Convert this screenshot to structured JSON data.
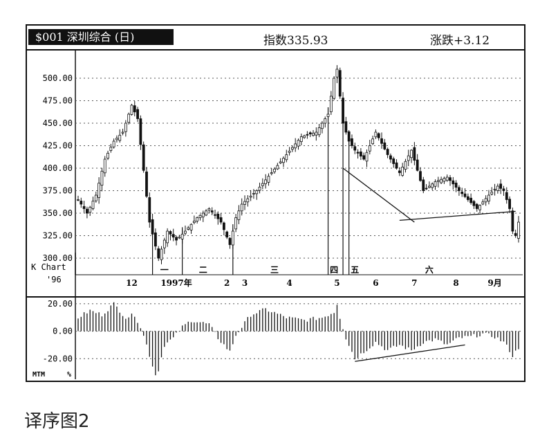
{
  "header": {
    "ticker": "$001 深圳综合 (日)",
    "index_label": "指数335.93",
    "change_label": "涨跌+3.12"
  },
  "caption": "译序图2",
  "chart_data": [
    {
      "type": "candlestick",
      "title": "K Chart",
      "year_label": "'96",
      "y_ticks": [
        "500.00",
        "475.00",
        "450.00",
        "425.00",
        "400.00",
        "375.00",
        "350.00",
        "325.00",
        "300.00"
      ],
      "ylim": [
        280,
        520
      ],
      "x_labels": [
        "12",
        "1997年",
        "2",
        "3",
        "4",
        "5",
        "6",
        "7",
        "8",
        "9月"
      ],
      "x_label_positions_day": [
        18,
        33,
        50,
        56,
        71,
        87,
        100,
        113,
        127,
        140
      ],
      "x_days": 148,
      "phase_labels": [
        "一",
        "二",
        "三",
        "四",
        "五",
        "六"
      ],
      "phase_label_positions_day": [
        29,
        42,
        66,
        86,
        93,
        118
      ],
      "phase_marker_days": [
        25,
        35,
        52,
        84,
        89,
        91
      ],
      "price_path_anchors": [
        [
          0,
          365
        ],
        [
          3,
          350
        ],
        [
          6,
          370
        ],
        [
          9,
          410
        ],
        [
          12,
          430
        ],
        [
          15,
          440
        ],
        [
          18,
          470
        ],
        [
          20,
          455
        ],
        [
          24,
          340
        ],
        [
          27,
          300
        ],
        [
          30,
          330
        ],
        [
          33,
          320
        ],
        [
          36,
          330
        ],
        [
          40,
          345
        ],
        [
          44,
          355
        ],
        [
          48,
          340
        ],
        [
          51,
          315
        ],
        [
          53,
          345
        ],
        [
          55,
          360
        ],
        [
          60,
          375
        ],
        [
          65,
          395
        ],
        [
          70,
          415
        ],
        [
          75,
          435
        ],
        [
          80,
          440
        ],
        [
          84,
          460
        ],
        [
          86,
          500
        ],
        [
          87,
          510
        ],
        [
          88,
          480
        ],
        [
          89,
          450
        ],
        [
          91,
          430
        ],
        [
          93,
          420
        ],
        [
          96,
          410
        ],
        [
          100,
          440
        ],
        [
          104,
          415
        ],
        [
          108,
          395
        ],
        [
          112,
          420
        ],
        [
          116,
          375
        ],
        [
          120,
          385
        ],
        [
          124,
          390
        ],
        [
          128,
          375
        ],
        [
          131,
          365
        ],
        [
          134,
          355
        ],
        [
          138,
          370
        ],
        [
          141,
          380
        ],
        [
          143,
          375
        ],
        [
          145,
          355
        ],
        [
          146,
          330
        ],
        [
          147,
          325
        ],
        [
          148,
          340
        ]
      ],
      "trendlines_price": [
        {
          "from": [
            89,
            400
          ],
          "to": [
            113,
            340
          ]
        },
        {
          "from": [
            108,
            342
          ],
          "to": [
            147,
            352
          ]
        }
      ]
    },
    {
      "type": "bar",
      "title": "MTM",
      "unit_label": "%",
      "y_ticks": [
        "20.00",
        "0.00",
        "-20.00"
      ],
      "ylim": [
        -35,
        25
      ],
      "momentum_anchors": [
        [
          0,
          10
        ],
        [
          4,
          15
        ],
        [
          8,
          12
        ],
        [
          12,
          20
        ],
        [
          16,
          10
        ],
        [
          19,
          12
        ],
        [
          21,
          3
        ],
        [
          23,
          -10
        ],
        [
          25,
          -25
        ],
        [
          26,
          -32
        ],
        [
          27,
          -28
        ],
        [
          29,
          -10
        ],
        [
          32,
          -5
        ],
        [
          35,
          3
        ],
        [
          38,
          8
        ],
        [
          44,
          5
        ],
        [
          47,
          -5
        ],
        [
          51,
          -15
        ],
        [
          53,
          -3
        ],
        [
          58,
          12
        ],
        [
          63,
          16
        ],
        [
          70,
          10
        ],
        [
          76,
          8
        ],
        [
          82,
          10
        ],
        [
          86,
          14
        ],
        [
          87,
          20
        ],
        [
          88,
          10
        ],
        [
          90,
          -5
        ],
        [
          93,
          -20
        ],
        [
          96,
          -15
        ],
        [
          100,
          -8
        ],
        [
          104,
          -14
        ],
        [
          108,
          -10
        ],
        [
          112,
          -14
        ],
        [
          116,
          -8
        ],
        [
          120,
          -6
        ],
        [
          124,
          -10
        ],
        [
          128,
          -5
        ],
        [
          132,
          -4
        ],
        [
          136,
          -2
        ],
        [
          140,
          -4
        ],
        [
          143,
          -8
        ],
        [
          145,
          -14
        ],
        [
          146,
          -18
        ],
        [
          148,
          -12
        ]
      ],
      "trendline": {
        "from": [
          93,
          -22
        ],
        "to": [
          130,
          -10
        ]
      }
    }
  ]
}
